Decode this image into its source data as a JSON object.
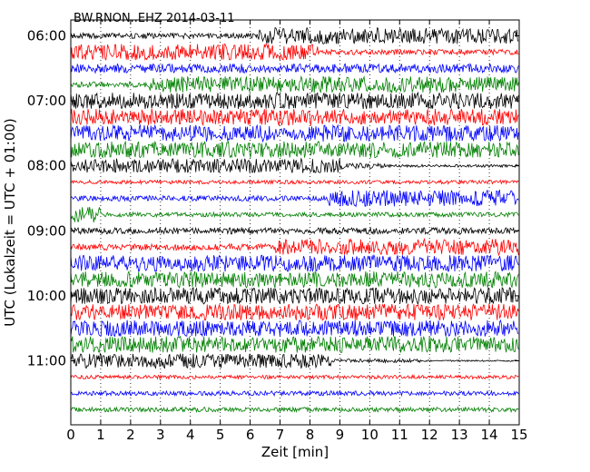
{
  "chart_data": {
    "type": "line",
    "title": "BW.RNON..EHZ 2014-03-11",
    "xlabel": "Zeit  [min]",
    "ylabel": "UTC (Lokalzeit = UTC + 01:00)",
    "xlim": [
      0,
      15
    ],
    "x_ticks": [
      "0",
      "1",
      "2",
      "3",
      "4",
      "5",
      "6",
      "7",
      "8",
      "9",
      "10",
      "11",
      "12",
      "13",
      "14",
      "15"
    ],
    "y_tick_labels": [
      "06:00",
      "07:00",
      "08:00",
      "09:00",
      "10:00",
      "11:00"
    ],
    "grid": "vertical dotted",
    "trace_interval_min": 15,
    "first_trace": "06:00",
    "trace_colors": [
      "#000000",
      "#ff0000",
      "#0000ff",
      "#008000"
    ],
    "traces": [
      {
        "start": "06:00",
        "segments": [
          [
            0,
            6.2,
            3
          ],
          [
            6.2,
            15,
            9
          ]
        ]
      },
      {
        "start": "06:15",
        "segments": [
          [
            0,
            8.3,
            9
          ],
          [
            8.3,
            15,
            3
          ]
        ]
      },
      {
        "start": "06:30",
        "segments": [
          [
            0,
            15,
            5
          ]
        ]
      },
      {
        "start": "06:45",
        "segments": [
          [
            0,
            2.6,
            3
          ],
          [
            2.6,
            15,
            9
          ]
        ]
      },
      {
        "start": "07:00",
        "segments": [
          [
            0,
            15,
            9
          ]
        ]
      },
      {
        "start": "07:15",
        "segments": [
          [
            0,
            15,
            9
          ]
        ]
      },
      {
        "start": "07:30",
        "segments": [
          [
            0,
            15,
            9
          ]
        ]
      },
      {
        "start": "07:45",
        "segments": [
          [
            0,
            15,
            9
          ]
        ]
      },
      {
        "start": "08:00",
        "segments": [
          [
            0,
            9.1,
            8
          ],
          [
            9.1,
            10.5,
            3
          ],
          [
            10.5,
            15,
            1.5
          ]
        ]
      },
      {
        "start": "08:15",
        "segments": [
          [
            0,
            15,
            2
          ]
        ]
      },
      {
        "start": "08:30",
        "segments": [
          [
            0,
            8.6,
            3
          ],
          [
            8.6,
            15,
            9
          ]
        ]
      },
      {
        "start": "08:45",
        "segments": [
          [
            0,
            1,
            9
          ],
          [
            1,
            15,
            2.5
          ]
        ]
      },
      {
        "start": "09:00",
        "segments": [
          [
            0,
            15,
            3.5
          ]
        ]
      },
      {
        "start": "09:15",
        "segments": [
          [
            0,
            6.8,
            3.5
          ],
          [
            6.8,
            15,
            9
          ]
        ]
      },
      {
        "start": "09:30",
        "segments": [
          [
            0,
            15,
            9
          ]
        ]
      },
      {
        "start": "09:45",
        "segments": [
          [
            0,
            15,
            9
          ]
        ]
      },
      {
        "start": "10:00",
        "segments": [
          [
            0,
            15,
            9
          ]
        ]
      },
      {
        "start": "10:15",
        "segments": [
          [
            0,
            15,
            9
          ]
        ]
      },
      {
        "start": "10:30",
        "segments": [
          [
            0,
            15,
            9
          ]
        ]
      },
      {
        "start": "10:45",
        "segments": [
          [
            0,
            15,
            9
          ]
        ]
      },
      {
        "start": "11:00",
        "segments": [
          [
            0,
            8.7,
            8
          ],
          [
            8.7,
            11.7,
            2
          ],
          [
            11.7,
            15,
            0.8
          ]
        ]
      },
      {
        "start": "11:15",
        "segments": [
          [
            0,
            15,
            2
          ]
        ]
      },
      {
        "start": "11:30",
        "segments": [
          [
            0,
            15,
            2.5
          ]
        ]
      },
      {
        "start": "11:45",
        "segments": [
          [
            0,
            15,
            2.5
          ]
        ]
      }
    ]
  }
}
